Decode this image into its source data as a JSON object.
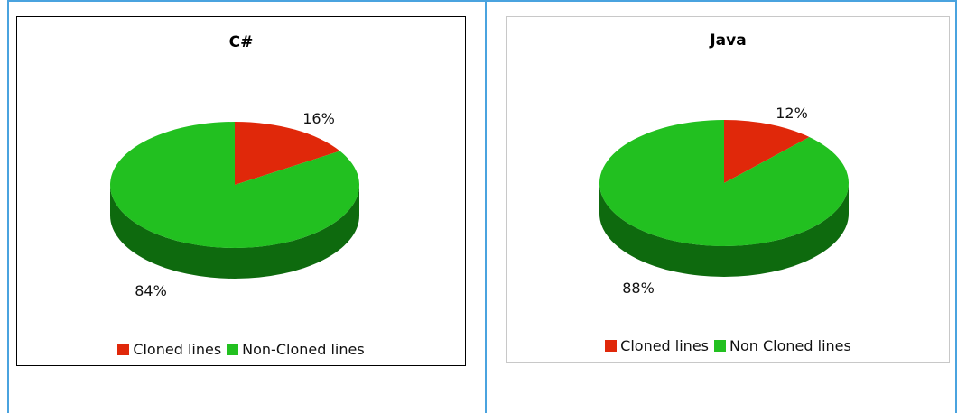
{
  "chart_data": [
    {
      "type": "pie",
      "title": "C#",
      "categories": [
        "Cloned lines",
        "Non-Cloned lines"
      ],
      "values": [
        16,
        84
      ],
      "labels": [
        "16%",
        "84%"
      ],
      "colors": [
        "#e0280a",
        "#22c020"
      ],
      "side_colors": [
        "#a71d06",
        "#0e6a0e"
      ],
      "legend": "bottom"
    },
    {
      "type": "pie",
      "title": "Java",
      "categories": [
        "Cloned lines",
        "Non Cloned lines"
      ],
      "values": [
        12,
        88
      ],
      "labels": [
        "12%",
        "88%"
      ],
      "colors": [
        "#e0280a",
        "#22c020"
      ],
      "side_colors": [
        "#a71d06",
        "#0e6a0e"
      ],
      "legend": "bottom"
    }
  ]
}
